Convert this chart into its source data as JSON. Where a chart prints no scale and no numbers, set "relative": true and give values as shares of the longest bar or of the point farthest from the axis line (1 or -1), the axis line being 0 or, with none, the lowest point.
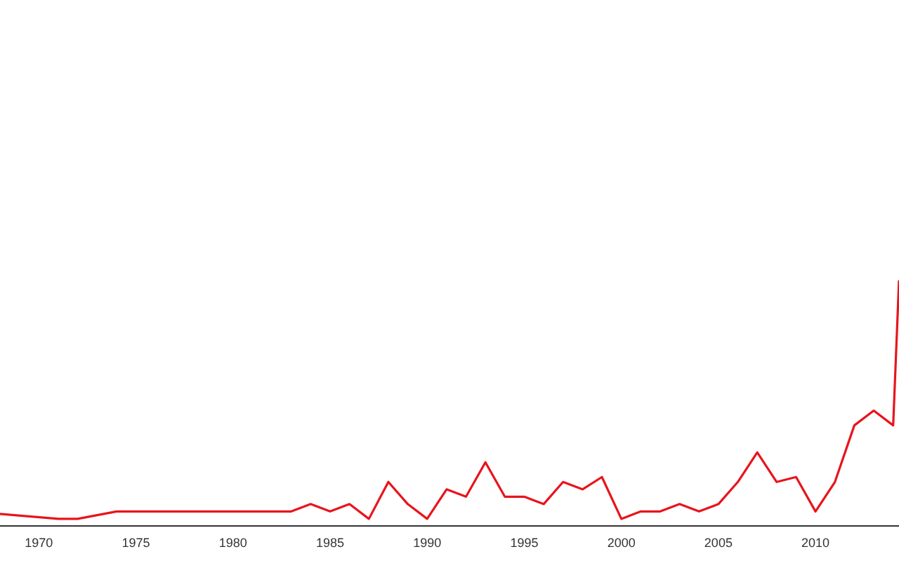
{
  "chart_data": {
    "type": "line",
    "relative": true,
    "x": [
      1968,
      1971,
      1972,
      1974,
      1975,
      1976,
      1977,
      1978,
      1979,
      1980,
      1981,
      1982,
      1983,
      1984,
      1985,
      1986,
      1987,
      1988,
      1989,
      1990,
      1991,
      1992,
      1993,
      1994,
      1995,
      1996,
      1997,
      1998,
      1999,
      2000,
      2001,
      2002,
      2003,
      2004,
      2005,
      2006,
      2007,
      2008,
      2009,
      2010,
      2011,
      2012,
      2013,
      2014,
      2014.3
    ],
    "series": [
      {
        "color": "#e8141c",
        "values": [
          0.05,
          0.03,
          0.03,
          0.06,
          0.06,
          0.06,
          0.06,
          0.06,
          0.06,
          0.06,
          0.06,
          0.06,
          0.06,
          0.09,
          0.06,
          0.09,
          0.03,
          0.18,
          0.09,
          0.03,
          0.15,
          0.12,
          0.26,
          0.12,
          0.12,
          0.09,
          0.18,
          0.15,
          0.2,
          0.03,
          0.06,
          0.06,
          0.09,
          0.06,
          0.09,
          0.18,
          0.3,
          0.18,
          0.2,
          0.06,
          0.18,
          0.41,
          0.47,
          0.41,
          1
        ]
      }
    ],
    "xlim": [
      1968,
      2014.3
    ],
    "xticks": [
      1970,
      1975,
      1980,
      1985,
      1990,
      1995,
      2000,
      2005,
      2010
    ],
    "grid": false,
    "legend": false,
    "marker": "none",
    "line_style": "solid",
    "tick_labels": "x"
  }
}
